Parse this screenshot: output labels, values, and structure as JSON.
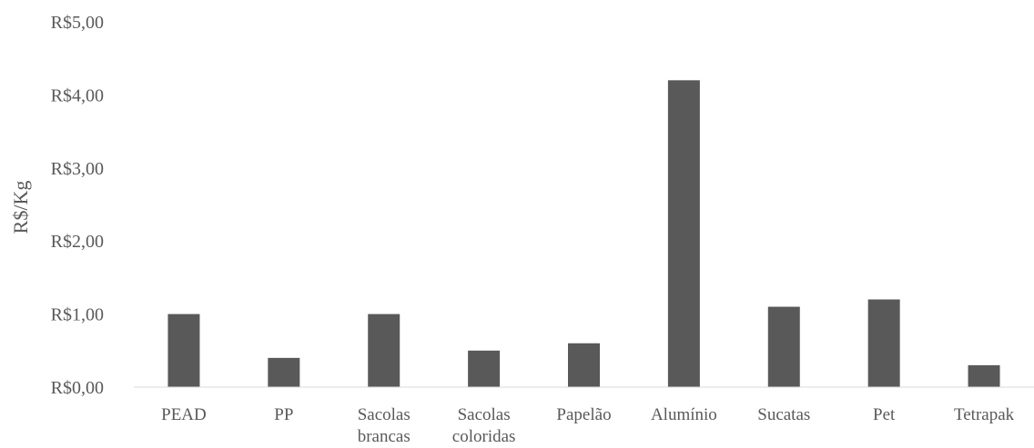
{
  "chart_data": {
    "type": "bar",
    "categories": [
      [
        "PEAD"
      ],
      [
        "PP"
      ],
      [
        "Sacolas",
        "brancas"
      ],
      [
        "Sacolas",
        "coloridas"
      ],
      [
        "Papelão"
      ],
      [
        "Alumínio"
      ],
      [
        "Sucatas"
      ],
      [
        "Pet"
      ],
      [
        "Tetrapak"
      ]
    ],
    "values": [
      1.0,
      0.4,
      1.0,
      0.5,
      0.6,
      4.2,
      1.1,
      1.2,
      0.3
    ],
    "title": "",
    "xlabel": "",
    "ylabel": "R$/Kg",
    "ylim": [
      0,
      5
    ],
    "yticks": [
      0,
      1,
      2,
      3,
      4,
      5
    ],
    "ytick_labels": [
      "R$0,00",
      "R$1,00",
      "R$2,00",
      "R$3,00",
      "R$4,00",
      "R$5,00"
    ],
    "grid": false,
    "legend": "none",
    "colors": {
      "bar": "#595959",
      "axis": "#d9d9d9",
      "text": "#595959"
    }
  }
}
